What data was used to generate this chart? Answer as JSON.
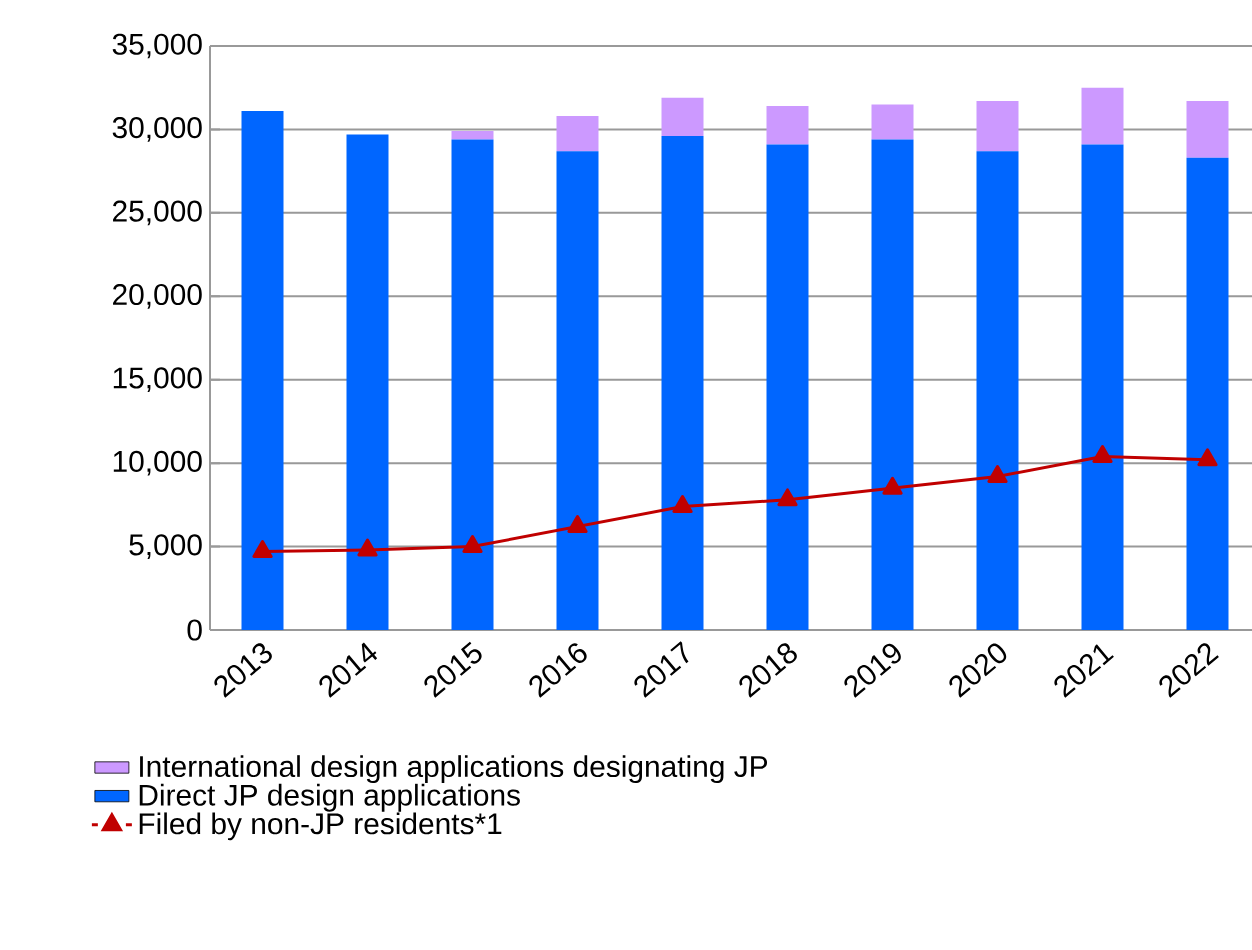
{
  "chart_data": {
    "type": "bar",
    "stacked": true,
    "categories": [
      "2013",
      "2014",
      "2015",
      "2016",
      "2017",
      "2018",
      "2019",
      "2020",
      "2021",
      "2022"
    ],
    "series": [
      {
        "name": "Direct JP design applications",
        "color": "#0066ff",
        "values": [
          31100,
          29700,
          29400,
          28700,
          29600,
          29100,
          29400,
          28700,
          29100,
          28300
        ]
      },
      {
        "name": "International design applications designating JP",
        "color": "#cc99ff",
        "values": [
          0,
          0,
          500,
          2100,
          2300,
          2300,
          2100,
          3000,
          3400,
          3400
        ]
      },
      {
        "name": "Filed by non-JP residents*1",
        "type": "line",
        "color": "#c00000",
        "marker": "triangle",
        "values": [
          4700,
          4800,
          5000,
          6200,
          7400,
          7800,
          8500,
          9200,
          10400,
          10200
        ]
      }
    ],
    "ylim": [
      0,
      35000
    ],
    "yticks": [
      {
        "value": 0,
        "label": "0"
      },
      {
        "value": 5000,
        "label": "5,000"
      },
      {
        "value": 10000,
        "label": "10,000"
      },
      {
        "value": 15000,
        "label": "15,000"
      },
      {
        "value": 20000,
        "label": "20,000"
      },
      {
        "value": 25000,
        "label": "25,000"
      },
      {
        "value": 30000,
        "label": "30,000"
      },
      {
        "value": 35000,
        "label": "35,000"
      }
    ],
    "grid": "y",
    "legend": "bottom"
  }
}
